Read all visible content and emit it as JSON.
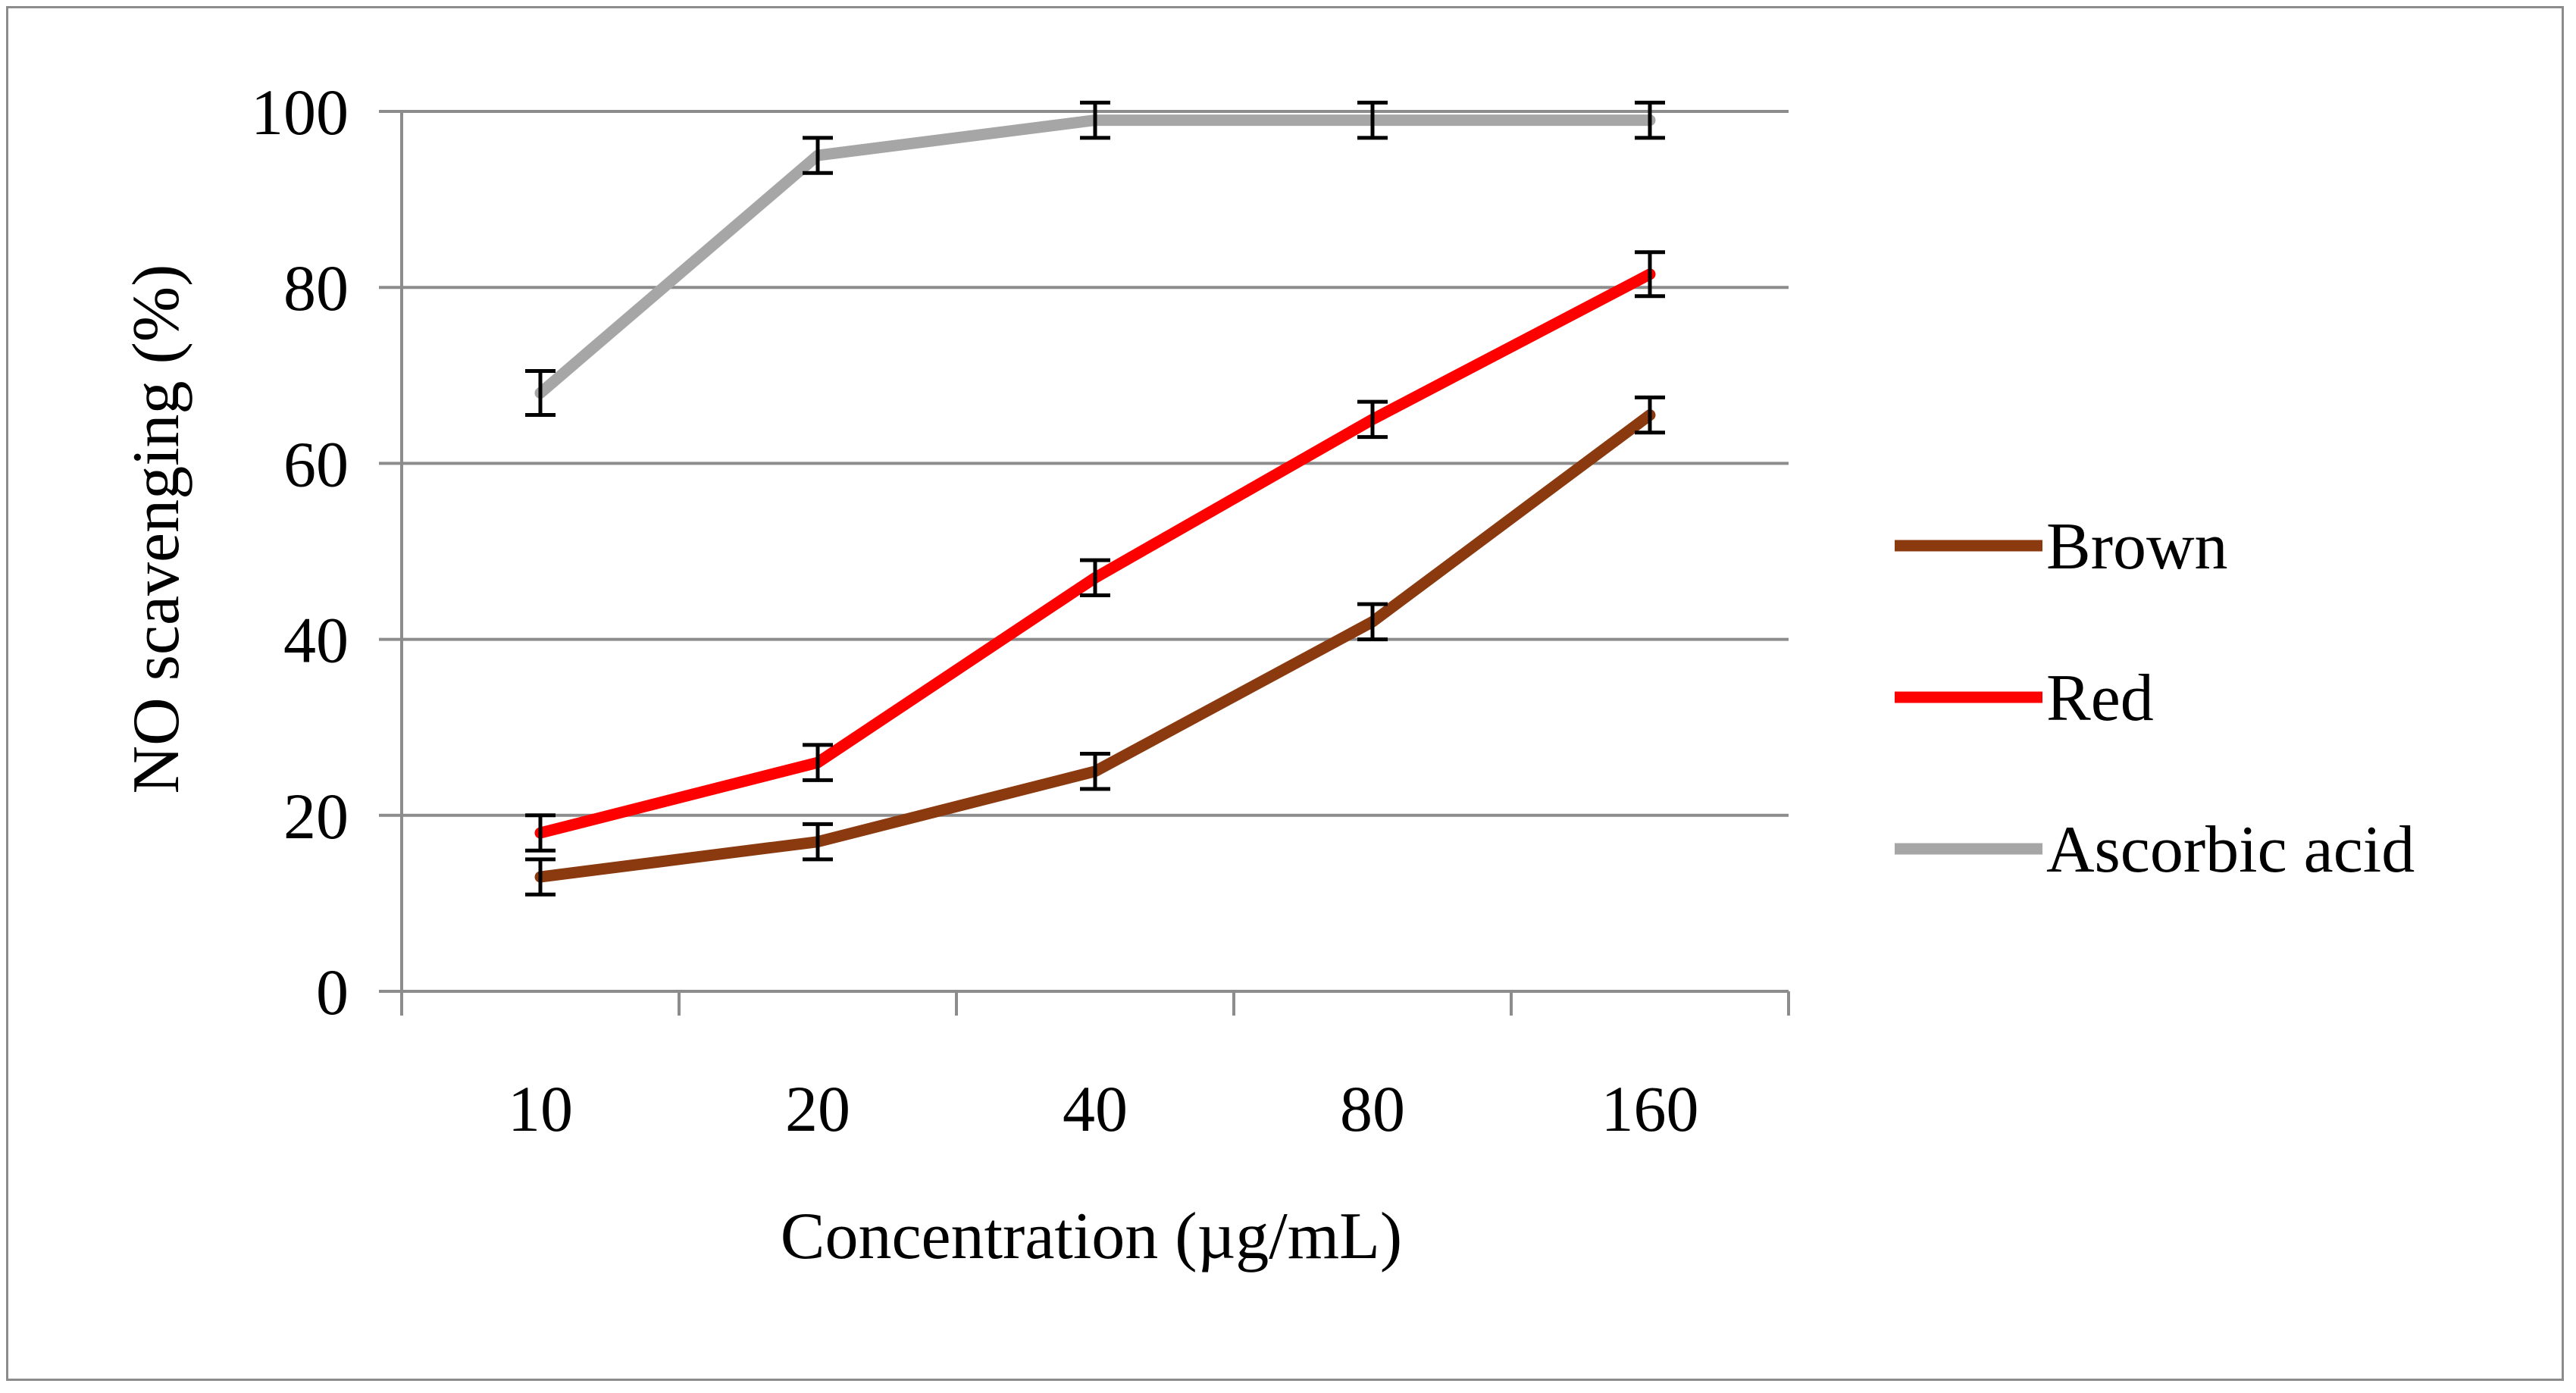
{
  "chart_data": {
    "type": "line",
    "categories": [
      "10",
      "20",
      "40",
      "80",
      "160"
    ],
    "xlabel": "Concentration (µg/mL)",
    "ylabel": "NO scavenging (%)",
    "ylim": [
      0,
      100
    ],
    "yticks": [
      "0",
      "20",
      "40",
      "60",
      "80",
      "100"
    ],
    "grid": "horizontal",
    "legend_position": "right",
    "series": [
      {
        "name": "Brown",
        "color": "#8b3a0f",
        "values": [
          13,
          17,
          25,
          42,
          65.5
        ],
        "error": [
          2,
          2,
          2,
          2,
          2
        ]
      },
      {
        "name": "Red",
        "color": "#ff0000",
        "values": [
          18,
          26,
          47,
          65,
          81.5
        ],
        "error": [
          2,
          2,
          2,
          2,
          2.5
        ]
      },
      {
        "name": "Ascorbic acid",
        "color": "#a6a6a6",
        "values": [
          68,
          95,
          99,
          99,
          99
        ],
        "error": [
          2.5,
          2,
          2,
          2,
          2
        ]
      }
    ],
    "gridline_color": "#8c8c8c"
  }
}
